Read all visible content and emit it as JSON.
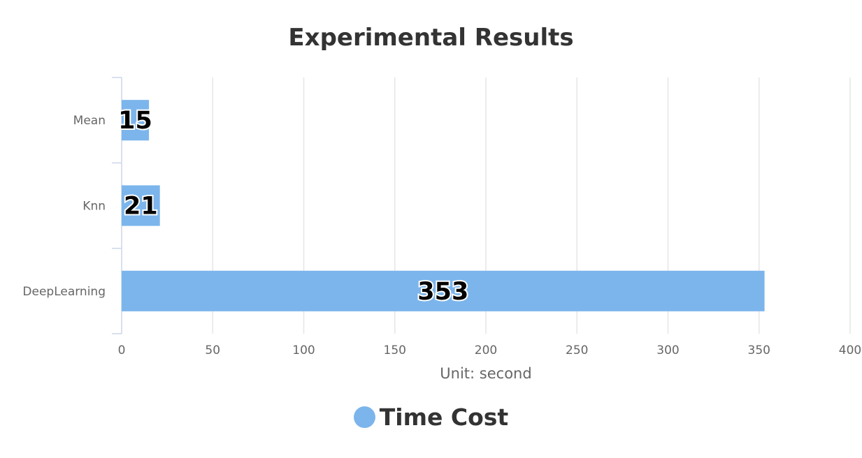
{
  "chart_data": {
    "type": "bar",
    "orientation": "horizontal",
    "title": "Experimental Results",
    "categories": [
      "Mean",
      "Knn",
      "DeepLearning"
    ],
    "series": [
      {
        "name": "Time Cost",
        "values": [
          15,
          21,
          353
        ]
      }
    ],
    "xlabel": "Unit: second",
    "ylabel": "",
    "xlim": [
      0,
      400
    ],
    "xticks": [
      "0",
      "50",
      "100",
      "150",
      "200",
      "250",
      "300",
      "350",
      "400"
    ],
    "data_labels": [
      "15",
      "21",
      "353"
    ],
    "grid": true,
    "legend_position": "bottom",
    "colors": {
      "bar": "#7cb5ec",
      "grid": "#e6e6e6",
      "axis": "#ccd6eb"
    }
  }
}
